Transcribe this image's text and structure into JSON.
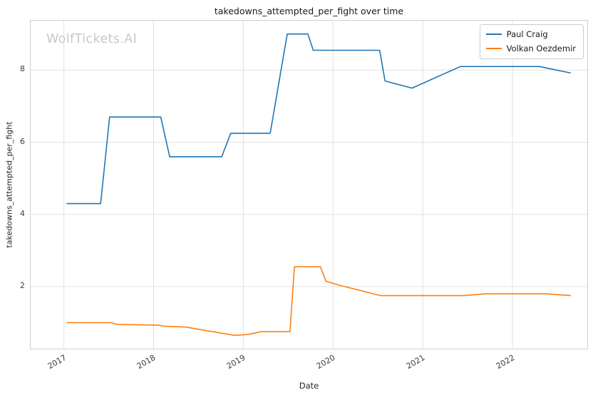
{
  "watermark": "WolfTickets.AI",
  "chart_data": {
    "type": "line",
    "title": "takedowns_attempted_per_fight over time",
    "xlabel": "Date",
    "ylabel": "takedowns_attempted_per_fight",
    "xlim": [
      2016.63,
      2022.85
    ],
    "ylim": [
      0.24,
      9.37
    ],
    "x_ticks": [
      2017,
      2018,
      2019,
      2020,
      2021,
      2022
    ],
    "y_ticks": [
      2,
      4,
      6,
      8
    ],
    "grid": true,
    "legend_position": "upper right",
    "series": [
      {
        "name": "Paul Craig",
        "color": "#1f77b4",
        "points": [
          [
            2017.03,
            4.3
          ],
          [
            2017.41,
            4.3
          ],
          [
            2017.51,
            6.7
          ],
          [
            2018.08,
            6.7
          ],
          [
            2018.18,
            5.6
          ],
          [
            2018.76,
            5.6
          ],
          [
            2018.86,
            6.25
          ],
          [
            2019.3,
            6.25
          ],
          [
            2019.49,
            9.0
          ],
          [
            2019.72,
            9.0
          ],
          [
            2019.78,
            8.55
          ],
          [
            2020.52,
            8.55
          ],
          [
            2020.58,
            7.7
          ],
          [
            2020.88,
            7.5
          ],
          [
            2021.42,
            8.1
          ],
          [
            2022.3,
            8.1
          ],
          [
            2022.65,
            7.92
          ]
        ]
      },
      {
        "name": "Volkan Oezdemir",
        "color": "#ff7f0e",
        "points": [
          [
            2017.03,
            1.0
          ],
          [
            2017.53,
            1.0
          ],
          [
            2017.6,
            0.95
          ],
          [
            2018.06,
            0.93
          ],
          [
            2018.12,
            0.9
          ],
          [
            2018.35,
            0.88
          ],
          [
            2018.9,
            0.65
          ],
          [
            2019.05,
            0.67
          ],
          [
            2019.2,
            0.75
          ],
          [
            2019.52,
            0.75
          ],
          [
            2019.57,
            2.55
          ],
          [
            2019.86,
            2.55
          ],
          [
            2019.92,
            2.15
          ],
          [
            2020.05,
            2.05
          ],
          [
            2020.53,
            1.75
          ],
          [
            2021.46,
            1.75
          ],
          [
            2021.7,
            1.8
          ],
          [
            2022.38,
            1.8
          ],
          [
            2022.65,
            1.75
          ]
        ]
      }
    ]
  }
}
